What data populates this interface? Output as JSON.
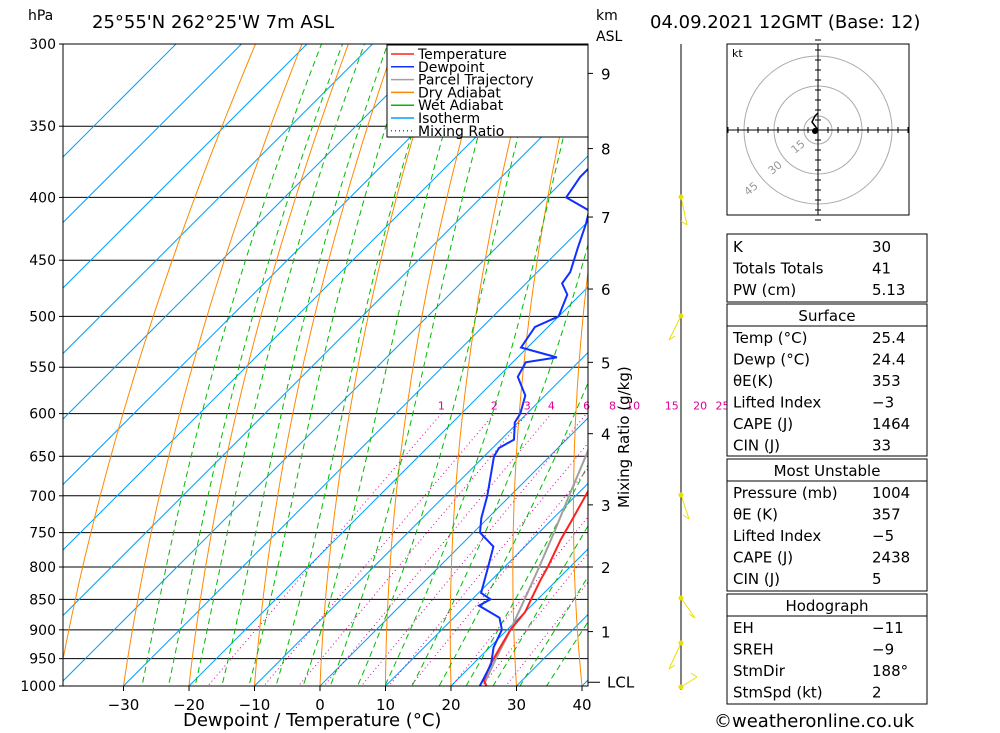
{
  "header": {
    "hpa_unit": "hPa",
    "location": "25°55'N 262°25'W 7m ASL",
    "km_unit": "km",
    "asl_label": "ASL",
    "datetime": "04.09.2021 12GMT (Base: 12)"
  },
  "footer": {
    "xlabel": "Dewpoint / Temperature (°C)",
    "mixing_label": "Mixing Ratio (g/kg)",
    "copyright": "©weatheronline.co.uk"
  },
  "colors": {
    "temperature": "#ff2020",
    "dewpoint": "#1030ff",
    "parcel": "#a0a0a0",
    "dry_adiabat": "#ff8800",
    "wet_adiabat": "#00bb00",
    "isotherm": "#00a0ff",
    "mixing_ratio": "#dd0099",
    "wind": "#e8e000"
  },
  "chart_data": {
    "type": "line",
    "title": "25°55'N 262°25'W 7m ASL",
    "xlabel": "Dewpoint / Temperature (°C)",
    "ylabel": "hPa",
    "xlim": [
      -40,
      40
    ],
    "ylim": [
      1000,
      300
    ],
    "pressure_ticks": [
      1000,
      950,
      900,
      850,
      800,
      750,
      700,
      650,
      600,
      550,
      500,
      450,
      400,
      350,
      300
    ],
    "temp_ticks": [
      -30,
      -20,
      -10,
      0,
      10,
      20,
      30,
      40
    ],
    "km_ticks": [
      {
        "label": "1",
        "p": 903
      },
      {
        "label": "2",
        "p": 800
      },
      {
        "label": "3",
        "p": 712
      },
      {
        "label": "4",
        "p": 623
      },
      {
        "label": "5",
        "p": 545
      },
      {
        "label": "6",
        "p": 475
      },
      {
        "label": "7",
        "p": 415
      },
      {
        "label": "8",
        "p": 365
      },
      {
        "label": "9",
        "p": 317
      }
    ],
    "lcl_label": "LCL",
    "lcl_p": 993,
    "mixing_ratio_labels": [
      "1",
      "2",
      "3",
      "4",
      "6",
      "8",
      "10",
      "15",
      "20",
      "25"
    ],
    "mixing_ratio_values": [
      1,
      2,
      3,
      4,
      6,
      8,
      10,
      15,
      20,
      25
    ],
    "legend": [
      "Temperature",
      "Dewpoint",
      "Parcel Trajectory",
      "Dry Adiabat",
      "Wet Adiabat",
      "Isotherm",
      "Mixing Ratio"
    ],
    "series": [
      {
        "name": "Temperature",
        "points": [
          [
            1000,
            25.4
          ],
          [
            990,
            24.2
          ],
          [
            960,
            22.7
          ],
          [
            930,
            21.6
          ],
          [
            900,
            20.5
          ],
          [
            870,
            20.0
          ],
          [
            850,
            19.0
          ],
          [
            820,
            17.5
          ],
          [
            800,
            16.6
          ],
          [
            760,
            14.4
          ],
          [
            730,
            13.0
          ],
          [
            700,
            11.5
          ],
          [
            660,
            9.4
          ],
          [
            630,
            7.2
          ],
          [
            600,
            5.3
          ],
          [
            560,
            2.4
          ],
          [
            530,
            -0.3
          ],
          [
            500,
            -2.8
          ],
          [
            480,
            -4.3
          ],
          [
            460,
            -6.3
          ],
          [
            440,
            -8.8
          ],
          [
            420,
            -11.5
          ],
          [
            400,
            -14.5
          ],
          [
            380,
            -17.5
          ],
          [
            365,
            -20.0
          ],
          [
            360,
            -21.0
          ]
        ]
      },
      {
        "name": "Dewpoint",
        "points": [
          [
            1000,
            24.4
          ],
          [
            960,
            22.8
          ],
          [
            930,
            20.6
          ],
          [
            900,
            19.2
          ],
          [
            880,
            17.0
          ],
          [
            860,
            12.0
          ],
          [
            850,
            12.8
          ],
          [
            840,
            10.4
          ],
          [
            800,
            7.5
          ],
          [
            770,
            5.2
          ],
          [
            750,
            1.0
          ],
          [
            730,
            -1.0
          ],
          [
            700,
            -3.5
          ],
          [
            650,
            -8.5
          ],
          [
            640,
            -9.0
          ],
          [
            630,
            -8.0
          ],
          [
            610,
            -10.5
          ],
          [
            600,
            -11.0
          ],
          [
            580,
            -13.0
          ],
          [
            560,
            -17.0
          ],
          [
            545,
            -18.0
          ],
          [
            540,
            -14.0
          ],
          [
            530,
            -21.0
          ],
          [
            510,
            -22.0
          ],
          [
            500,
            -20.0
          ],
          [
            480,
            -22.0
          ],
          [
            470,
            -24.5
          ],
          [
            460,
            -25.0
          ],
          [
            440,
            -27.5
          ],
          [
            420,
            -30.0
          ],
          [
            410,
            -31.5
          ],
          [
            400,
            -37.0
          ],
          [
            385,
            -38.0
          ],
          [
            370,
            -38.0
          ],
          [
            360,
            -39.5
          ],
          [
            350,
            -30.0
          ],
          [
            340,
            -44.0
          ],
          [
            320,
            -46.0
          ],
          [
            300,
            -49.0
          ]
        ]
      },
      {
        "name": "Parcel Trajectory",
        "points": [
          [
            1000,
            25.4
          ],
          [
            993,
            24.6
          ],
          [
            950,
            22.7
          ],
          [
            900,
            20.5
          ],
          [
            850,
            18.0
          ],
          [
            800,
            15.3
          ],
          [
            750,
            12.3
          ],
          [
            700,
            9.0
          ],
          [
            650,
            5.5
          ],
          [
            600,
            1.5
          ],
          [
            550,
            -3.0
          ],
          [
            500,
            -8.2
          ],
          [
            450,
            -14.0
          ],
          [
            400,
            -20.8
          ],
          [
            365,
            -26.5
          ]
        ]
      }
    ]
  },
  "hodograph": {
    "unit": "kt",
    "ring_labels": [
      "15",
      "30",
      "45"
    ]
  },
  "indices": {
    "rows": [
      {
        "label": "K",
        "value": "30"
      },
      {
        "label": "Totals Totals",
        "value": "41"
      },
      {
        "label": "PW (cm)",
        "value": "5.13"
      }
    ]
  },
  "surface": {
    "title": "Surface",
    "rows": [
      {
        "label": "Temp (°C)",
        "value": "25.4"
      },
      {
        "label": "Dewp (°C)",
        "value": "24.4"
      },
      {
        "label": "θE(K)",
        "value": "353"
      },
      {
        "label": "Lifted Index",
        "value": "−3"
      },
      {
        "label": "CAPE (J)",
        "value": "1464"
      },
      {
        "label": "CIN (J)",
        "value": "33"
      }
    ]
  },
  "most_unstable": {
    "title": "Most Unstable",
    "rows": [
      {
        "label": "Pressure (mb)",
        "value": "1004"
      },
      {
        "label": "θE (K)",
        "value": "357"
      },
      {
        "label": "Lifted Index",
        "value": "−5"
      },
      {
        "label": "CAPE (J)",
        "value": "2438"
      },
      {
        "label": "CIN (J)",
        "value": "5"
      }
    ]
  },
  "hodograph_table": {
    "title": "Hodograph",
    "rows": [
      {
        "label": "EH",
        "value": "−11"
      },
      {
        "label": "SREH",
        "value": "−9"
      },
      {
        "label": "StmDir",
        "value": "188°"
      },
      {
        "label": "StmSpd (kt)",
        "value": "2"
      }
    ]
  }
}
